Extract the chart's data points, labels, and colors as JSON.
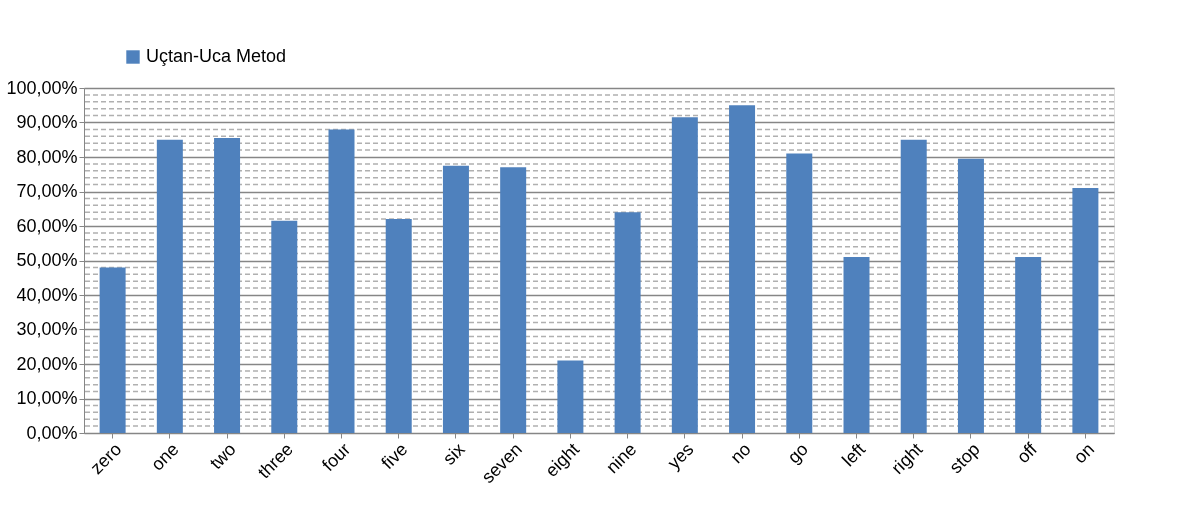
{
  "chart_data": {
    "type": "bar",
    "categories": [
      "zero",
      "one",
      "two",
      "three",
      "four",
      "five",
      "six",
      "seven",
      "eight",
      "nine",
      "yes",
      "no",
      "go",
      "left",
      "right",
      "stop",
      "off",
      "on"
    ],
    "series": [
      {
        "name": "Uçtan-Uca Metod",
        "color": "#4f81bd",
        "values": [
          48,
          85,
          85.5,
          61.5,
          88,
          62,
          77.5,
          77,
          21,
          64,
          91.5,
          95,
          81,
          51,
          85,
          79.5,
          51,
          71
        ]
      }
    ],
    "ylim": [
      0,
      100
    ],
    "yticks": [
      {
        "value": 0,
        "label": "0,00%"
      },
      {
        "value": 10,
        "label": "10,00%"
      },
      {
        "value": 20,
        "label": "20,00%"
      },
      {
        "value": 30,
        "label": "30,00%"
      },
      {
        "value": 40,
        "label": "40,00%"
      },
      {
        "value": 50,
        "label": "50,00%"
      },
      {
        "value": 60,
        "label": "60,00%"
      },
      {
        "value": 70,
        "label": "70,00%"
      },
      {
        "value": 80,
        "label": "80,00%"
      },
      {
        "value": 90,
        "label": "90,00%"
      },
      {
        "value": 100,
        "label": "100,00%"
      }
    ],
    "grid": "y",
    "legend": "top left"
  }
}
